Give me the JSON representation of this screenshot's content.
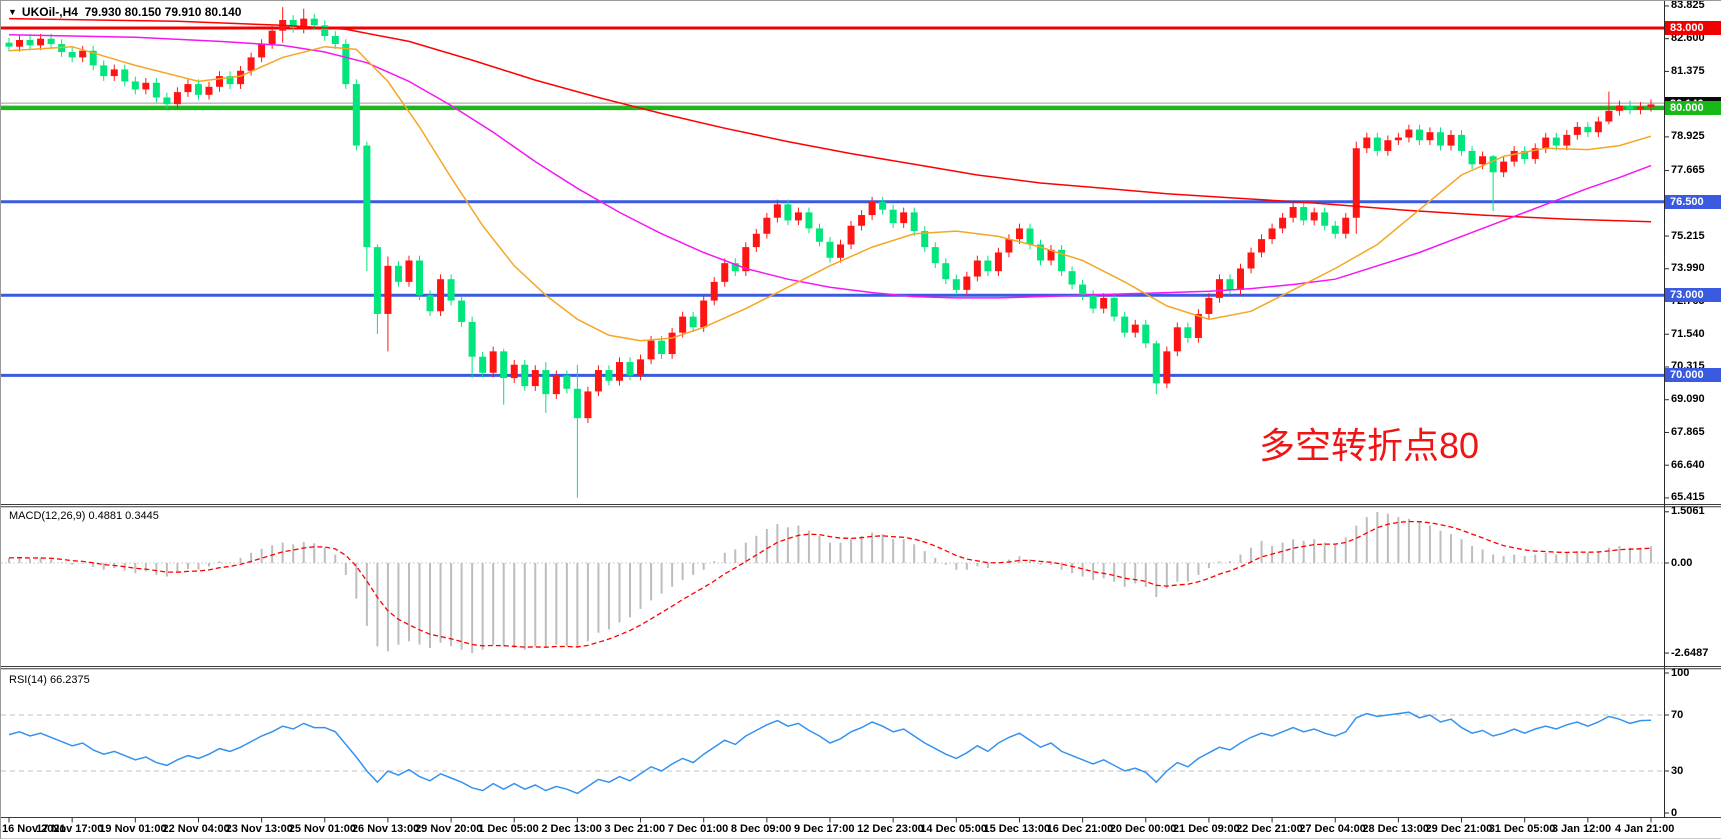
{
  "header": {
    "dropdown_icon": "▼",
    "symbol": "UKOil-,H4",
    "ohlc": "79.930 80.150 79.910 80.140"
  },
  "annotation": {
    "text": "多空转折点80",
    "color": "#f01414"
  },
  "indicator_labels": {
    "macd": "MACD(12,26,9) 0.4881 0.3445",
    "rsi": "RSI(14) 66.2375"
  },
  "axes": {
    "price_ticks": [
      "83.825",
      "82.600",
      "81.375",
      "78.925",
      "77.665",
      "75.215",
      "73.990",
      "72.765",
      "71.540",
      "70.315",
      "69.090",
      "67.865",
      "66.640",
      "65.415"
    ],
    "price_badges": [
      {
        "label": "83.000",
        "price": 83.0,
        "bg": "#f20000",
        "type": "resistance-line-label"
      },
      {
        "label": "80.140",
        "price": 80.14,
        "bg": "#0a0a0a",
        "type": "current-price-label"
      },
      {
        "label": "80.000",
        "price": 80.0,
        "bg": "#17b917",
        "type": "pivot-line-label"
      },
      {
        "label": "76.500",
        "price": 76.5,
        "bg": "#3a5ae0",
        "type": "support-line-label"
      },
      {
        "label": "73.000",
        "price": 73.0,
        "bg": "#3a5ae0",
        "type": "support-line-label"
      },
      {
        "label": "70.000",
        "price": 70.0,
        "bg": "#3a5ae0",
        "type": "support-line-label"
      }
    ],
    "macd_ticks": [
      {
        "label": "1.5061",
        "value": 1.5061
      },
      {
        "label": "0.00",
        "value": 0
      },
      {
        "label": "-2.6487",
        "value": -2.6487
      }
    ],
    "rsi_ticks": [
      {
        "label": "100",
        "value": 100
      },
      {
        "label": "70",
        "value": 70
      },
      {
        "label": "30",
        "value": 30
      },
      {
        "label": "0",
        "value": 0
      }
    ],
    "time_labels": [
      "16 Nov 2021",
      "17 Nov 17:00",
      "19 Nov 01:00",
      "22 Nov 04:00",
      "23 Nov 13:00",
      "25 Nov 01:00",
      "26 Nov 13:00",
      "29 Nov 20:00",
      "1 Dec 05:00",
      "2 Dec 13:00",
      "3 Dec 21:00",
      "7 Dec 01:00",
      "8 Dec 09:00",
      "9 Dec 17:00",
      "12 Dec 23:00",
      "14 Dec 05:00",
      "15 Dec 13:00",
      "16 Dec 21:00",
      "20 Dec 00:00",
      "21 Dec 09:00",
      "22 Dec 21:00",
      "27 Dec 04:00",
      "28 Dec 13:00",
      "29 Dec 21:00",
      "31 Dec 05:00",
      "3 Jan 12:00",
      "4 Jan 21:00"
    ]
  },
  "chart_data": [
    {
      "type": "candlestick",
      "symbol": "UKOil-",
      "timeframe": "H4",
      "title": "UKOil-,H4 79.930 80.150 79.910 80.140",
      "ylim": [
        65.2,
        84.0
      ],
      "up_color": "#ff1414",
      "down_color": "#00e57c",
      "color_convention": "chinese (red=up, green=down)",
      "first_open": 82.45,
      "default_wick": 0.18,
      "closes": [
        82.3,
        82.55,
        82.35,
        82.6,
        82.4,
        82.1,
        81.9,
        82.15,
        81.6,
        81.2,
        81.45,
        81.0,
        80.7,
        80.95,
        80.4,
        80.15,
        80.6,
        80.9,
        80.5,
        80.8,
        81.2,
        80.9,
        81.4,
        81.9,
        82.4,
        82.9,
        83.3,
        83.0,
        83.35,
        83.1,
        82.7,
        82.4,
        80.9,
        78.6,
        74.8,
        72.3,
        74.1,
        73.5,
        74.3,
        73.0,
        72.4,
        73.6,
        72.8,
        72.0,
        70.7,
        70.1,
        70.9,
        69.9,
        70.4,
        69.6,
        70.2,
        69.3,
        70.0,
        69.5,
        68.4,
        69.4,
        70.2,
        69.8,
        70.5,
        70.0,
        70.6,
        71.3,
        70.8,
        71.6,
        72.2,
        71.8,
        72.8,
        73.5,
        74.2,
        73.9,
        74.8,
        75.3,
        75.9,
        76.4,
        75.8,
        76.1,
        75.5,
        75.0,
        74.4,
        74.9,
        75.6,
        76.0,
        76.5,
        76.2,
        75.7,
        76.1,
        75.4,
        74.8,
        74.2,
        73.6,
        73.2,
        73.7,
        74.3,
        73.9,
        74.6,
        75.1,
        75.5,
        74.9,
        74.3,
        74.7,
        73.9,
        73.4,
        73.0,
        72.5,
        72.9,
        72.2,
        71.6,
        71.9,
        71.2,
        69.7,
        70.9,
        71.8,
        71.4,
        72.3,
        72.9,
        73.6,
        73.2,
        74.0,
        74.6,
        75.1,
        75.5,
        75.9,
        76.3,
        75.8,
        76.1,
        75.6,
        75.3,
        75.9,
        78.5,
        78.9,
        78.4,
        78.8,
        78.9,
        79.2,
        78.8,
        79.1,
        78.6,
        79.0,
        78.4,
        77.9,
        78.2,
        77.6,
        78.0,
        78.4,
        78.1,
        78.5,
        78.9,
        78.6,
        79.0,
        79.3,
        79.1,
        79.5,
        79.9,
        80.1,
        79.95,
        80.05,
        80.14
      ],
      "wick_overrides": {
        "26": [
          83.78,
          82.45
        ],
        "28": [
          83.72,
          82.8
        ],
        "34": [
          78.75,
          73.9
        ],
        "35": [
          74.9,
          71.55
        ],
        "36": [
          74.45,
          70.9
        ],
        "44": [
          72.2,
          69.9
        ],
        "47": [
          71.0,
          68.9
        ],
        "51": [
          70.5,
          68.6
        ],
        "54": [
          70.4,
          65.42
        ],
        "109": [
          71.3,
          69.3
        ],
        "128": [
          78.75,
          75.3
        ],
        "141": [
          78.25,
          76.15
        ],
        "152": [
          80.62,
          79.4
        ]
      },
      "hlines": [
        {
          "name": "resistance-line-83",
          "price": 83.0,
          "color": "#f20000",
          "width": 3
        },
        {
          "name": "ask-price-line",
          "price": 80.19,
          "color": "#9a9a9a",
          "width": 1
        },
        {
          "name": "bid-price-line",
          "price": 80.08,
          "color": "#9a9a9a",
          "width": 1
        },
        {
          "name": "pivot-line-80",
          "price": 80.0,
          "color": "#17b917",
          "width": 4
        },
        {
          "name": "support-line-76-5",
          "price": 76.5,
          "color": "#3a5ae0",
          "width": 3
        },
        {
          "name": "support-line-73",
          "price": 73.0,
          "color": "#3a5ae0",
          "width": 3
        },
        {
          "name": "support-line-70",
          "price": 70.0,
          "color": "#3a5ae0",
          "width": 3
        }
      ],
      "moving_averages": [
        {
          "name": "slow",
          "color": "#ff0000",
          "points": [
            [
              0,
              83.35
            ],
            [
              16,
              83.25
            ],
            [
              26,
              83.1
            ],
            [
              32,
              82.95
            ],
            [
              38,
              82.5
            ],
            [
              44,
              81.8
            ],
            [
              50,
              81.05
            ],
            [
              56,
              80.4
            ],
            [
              62,
              79.8
            ],
            [
              68,
              79.25
            ],
            [
              74,
              78.75
            ],
            [
              80,
              78.3
            ],
            [
              86,
              77.9
            ],
            [
              92,
              77.5
            ],
            [
              98,
              77.2
            ],
            [
              104,
              77.0
            ],
            [
              110,
              76.8
            ],
            [
              116,
              76.65
            ],
            [
              124,
              76.45
            ],
            [
              132,
              76.2
            ],
            [
              140,
              76.0
            ],
            [
              148,
              75.85
            ],
            [
              156,
              75.75
            ]
          ]
        },
        {
          "name": "medium",
          "color": "#f516f5",
          "points": [
            [
              0,
              82.75
            ],
            [
              12,
              82.65
            ],
            [
              20,
              82.5
            ],
            [
              26,
              82.35
            ],
            [
              30,
              82.1
            ],
            [
              34,
              81.7
            ],
            [
              38,
              81.0
            ],
            [
              42,
              80.1
            ],
            [
              46,
              79.1
            ],
            [
              50,
              78.0
            ],
            [
              54,
              77.0
            ],
            [
              58,
              76.1
            ],
            [
              62,
              75.3
            ],
            [
              66,
              74.6
            ],
            [
              70,
              74.0
            ],
            [
              74,
              73.6
            ],
            [
              78,
              73.3
            ],
            [
              82,
              73.1
            ],
            [
              86,
              72.95
            ],
            [
              90,
              72.9
            ],
            [
              94,
              72.9
            ],
            [
              98,
              72.95
            ],
            [
              102,
              73.0
            ],
            [
              106,
              73.05
            ],
            [
              110,
              73.1
            ],
            [
              114,
              73.15
            ],
            [
              118,
              73.25
            ],
            [
              122,
              73.4
            ],
            [
              126,
              73.6
            ],
            [
              130,
              74.1
            ],
            [
              134,
              74.6
            ],
            [
              138,
              75.2
            ],
            [
              142,
              75.8
            ],
            [
              146,
              76.4
            ],
            [
              150,
              77.0
            ],
            [
              153,
              77.4
            ],
            [
              156,
              77.85
            ]
          ]
        },
        {
          "name": "fast",
          "color": "#f5a623",
          "points": [
            [
              0,
              82.15
            ],
            [
              6,
              82.3
            ],
            [
              12,
              81.6
            ],
            [
              18,
              81.0
            ],
            [
              22,
              81.2
            ],
            [
              26,
              81.9
            ],
            [
              30,
              82.3
            ],
            [
              33,
              82.2
            ],
            [
              36,
              81.0
            ],
            [
              39,
              79.3
            ],
            [
              42,
              77.4
            ],
            [
              45,
              75.6
            ],
            [
              48,
              74.1
            ],
            [
              51,
              73.0
            ],
            [
              54,
              72.1
            ],
            [
              57,
              71.5
            ],
            [
              60,
              71.3
            ],
            [
              63,
              71.4
            ],
            [
              66,
              71.8
            ],
            [
              70,
              72.5
            ],
            [
              74,
              73.3
            ],
            [
              78,
              74.1
            ],
            [
              82,
              74.8
            ],
            [
              86,
              75.3
            ],
            [
              90,
              75.4
            ],
            [
              94,
              75.2
            ],
            [
              98,
              74.8
            ],
            [
              102,
              74.3
            ],
            [
              106,
              73.5
            ],
            [
              110,
              72.6
            ],
            [
              114,
              72.1
            ],
            [
              118,
              72.4
            ],
            [
              122,
              73.2
            ],
            [
              126,
              74.0
            ],
            [
              130,
              74.9
            ],
            [
              134,
              76.2
            ],
            [
              138,
              77.5
            ],
            [
              142,
              78.2
            ],
            [
              146,
              78.5
            ],
            [
              150,
              78.45
            ],
            [
              153,
              78.6
            ],
            [
              156,
              78.95
            ]
          ]
        }
      ]
    },
    {
      "type": "macd_histogram",
      "title": "MACD(12,26,9)",
      "current_macd": 0.4881,
      "current_signal": 0.3445,
      "ylim": [
        -2.6487,
        1.5061
      ],
      "histogram_color": "#bdbdbd",
      "signal_color": "#ff0000",
      "signal_smoothing": 0.25,
      "values": [
        0.15,
        0.18,
        0.12,
        0.16,
        0.1,
        0.02,
        -0.05,
        -0.02,
        -0.12,
        -0.2,
        -0.15,
        -0.22,
        -0.3,
        -0.25,
        -0.35,
        -0.4,
        -0.28,
        -0.18,
        -0.2,
        -0.1,
        0.05,
        0.02,
        0.15,
        0.3,
        0.42,
        0.52,
        0.6,
        0.55,
        0.62,
        0.58,
        0.45,
        0.25,
        -0.35,
        -1.05,
        -1.85,
        -2.45,
        -2.6,
        -2.4,
        -2.3,
        -2.4,
        -2.5,
        -2.35,
        -2.45,
        -2.55,
        -2.65,
        -2.55,
        -2.4,
        -2.45,
        -2.5,
        -2.55,
        -2.45,
        -2.5,
        -2.4,
        -2.45,
        -2.5,
        -2.3,
        -2.05,
        -1.95,
        -1.75,
        -1.6,
        -1.35,
        -1.1,
        -0.9,
        -0.7,
        -0.5,
        -0.35,
        -0.2,
        0.05,
        0.3,
        0.4,
        0.6,
        0.8,
        1.0,
        1.15,
        1.05,
        1.1,
        0.95,
        0.8,
        0.6,
        0.6,
        0.7,
        0.8,
        0.9,
        0.85,
        0.7,
        0.7,
        0.55,
        0.35,
        0.15,
        -0.05,
        -0.2,
        -0.2,
        -0.1,
        -0.15,
        0.0,
        0.1,
        0.2,
        0.1,
        -0.05,
        -0.05,
        -0.2,
        -0.3,
        -0.4,
        -0.5,
        -0.45,
        -0.55,
        -0.7,
        -0.6,
        -0.7,
        -1.0,
        -0.75,
        -0.55,
        -0.55,
        -0.35,
        -0.15,
        0.05,
        0.05,
        0.25,
        0.45,
        0.65,
        0.5,
        0.6,
        0.7,
        0.65,
        0.7,
        0.6,
        0.55,
        0.75,
        1.1,
        1.35,
        1.5,
        1.45,
        1.35,
        1.3,
        1.2,
        1.1,
        0.95,
        0.85,
        0.7,
        0.5,
        0.4,
        0.25,
        0.2,
        0.25,
        0.2,
        0.25,
        0.3,
        0.25,
        0.3,
        0.35,
        0.3,
        0.35,
        0.45,
        0.5,
        0.45,
        0.45,
        0.49
      ]
    },
    {
      "type": "rsi_line",
      "title": "RSI(14)",
      "current": 66.2375,
      "ylim": [
        0,
        100
      ],
      "levels": [
        70,
        30
      ],
      "line_color": "#3492f0",
      "values": [
        56,
        58,
        55,
        57,
        54,
        51,
        48,
        50,
        45,
        42,
        44,
        41,
        38,
        40,
        36,
        34,
        38,
        41,
        39,
        42,
        46,
        44,
        47,
        51,
        55,
        58,
        62,
        60,
        64,
        61,
        61,
        58,
        49,
        40,
        30,
        22,
        30,
        27,
        31,
        26,
        23,
        28,
        25,
        22,
        18,
        16,
        21,
        17,
        21,
        17,
        20,
        16,
        19,
        17,
        14,
        19,
        24,
        22,
        26,
        23,
        28,
        33,
        30,
        35,
        39,
        36,
        42,
        47,
        52,
        49,
        55,
        59,
        63,
        66,
        62,
        64,
        59,
        55,
        50,
        53,
        58,
        61,
        65,
        62,
        58,
        60,
        55,
        50,
        46,
        42,
        39,
        43,
        48,
        44,
        50,
        54,
        57,
        52,
        47,
        50,
        44,
        41,
        38,
        35,
        38,
        34,
        30,
        32,
        29,
        22,
        30,
        36,
        33,
        39,
        43,
        47,
        45,
        50,
        54,
        57,
        55,
        58,
        61,
        58,
        60,
        57,
        55,
        58,
        68,
        71,
        69,
        70,
        71,
        72,
        68,
        70,
        65,
        67,
        61,
        57,
        59,
        55,
        57,
        60,
        57,
        60,
        62,
        60,
        63,
        65,
        62,
        65,
        69,
        67,
        64,
        66,
        66.24
      ]
    }
  ]
}
